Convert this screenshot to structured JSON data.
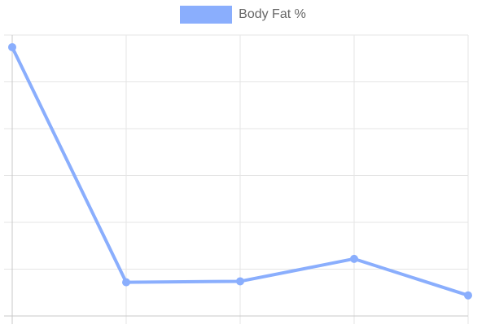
{
  "chart_data": {
    "type": "line",
    "categories": [
      "",
      "",
      "",
      "",
      ""
    ],
    "series": [
      {
        "name": "Body Fat %",
        "values": [
          30.5,
          5.4,
          5.5,
          7.9,
          4.0
        ],
        "color": "#8aaefd"
      }
    ],
    "ylim": [
      1.8,
      31.8
    ],
    "y_gridlines": 6,
    "x_gridlines": 5,
    "grid": true,
    "legend_position": "top-center",
    "grid_color": "#e5e5e5",
    "axis_color": "#c8c8c8"
  }
}
